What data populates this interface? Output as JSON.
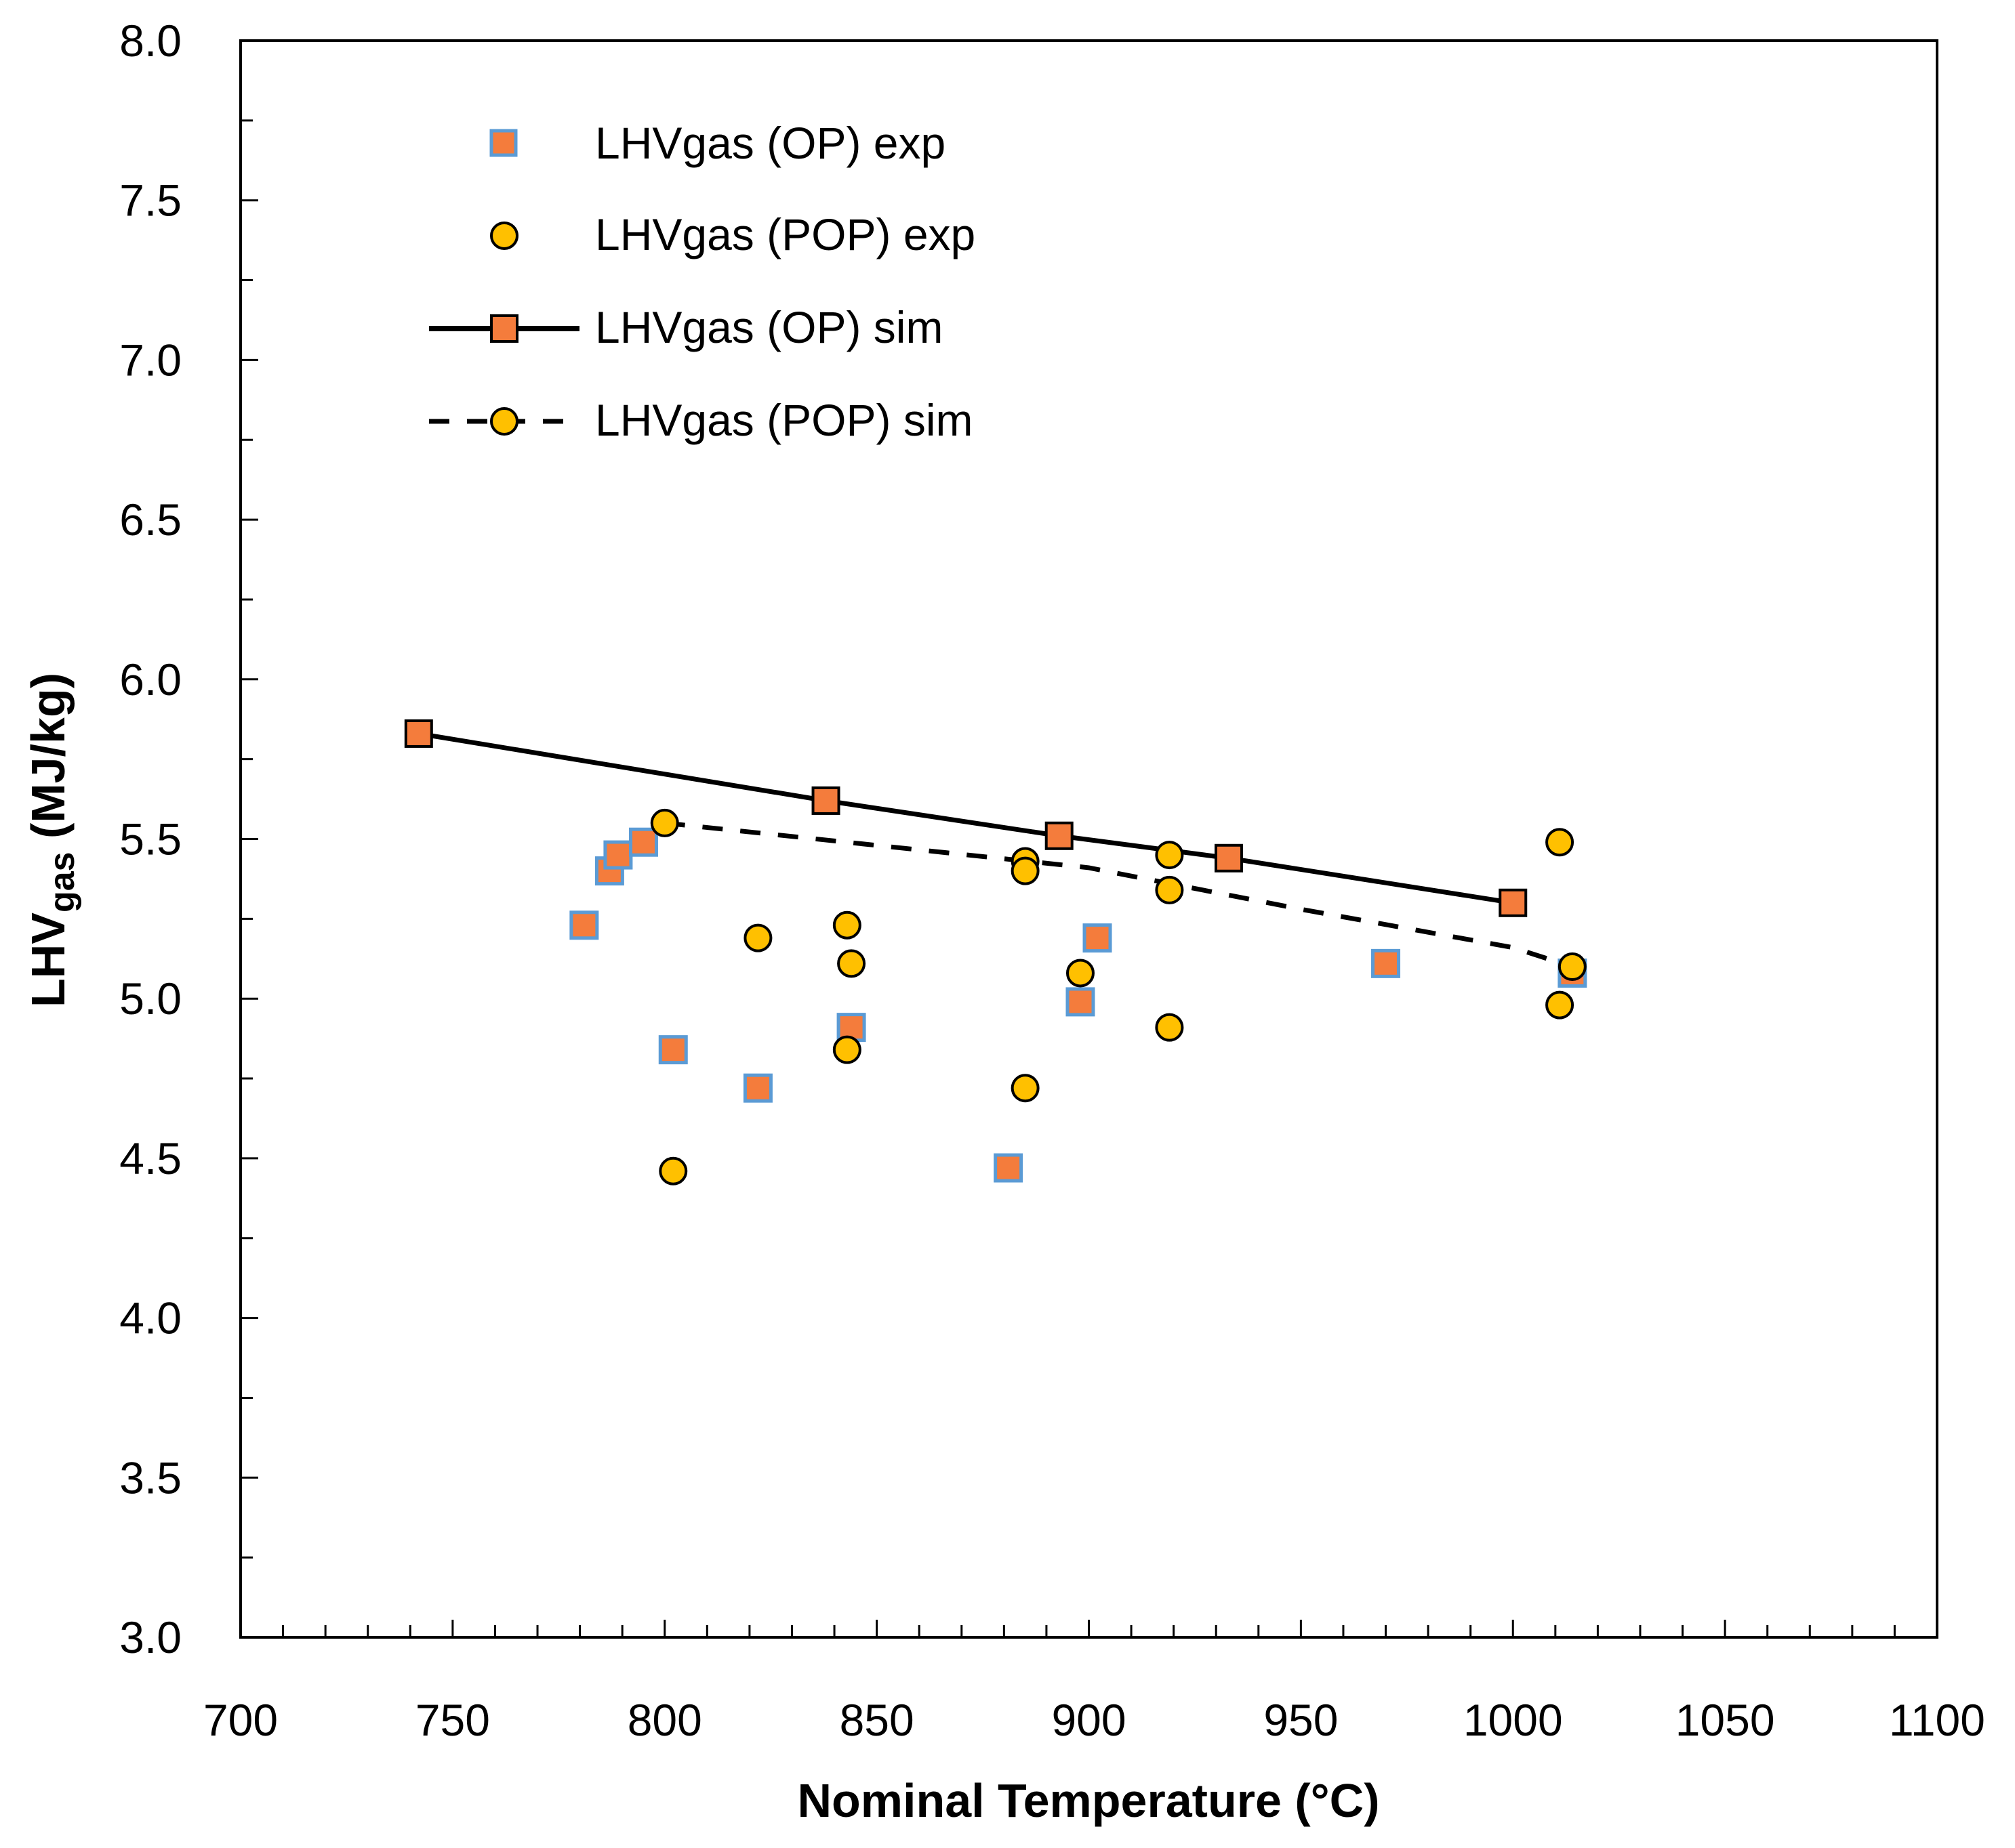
{
  "chart_data": {
    "type": "scatter",
    "title": "",
    "xlabel": "Nominal Temperature (°C)",
    "ylabel_main": "LHV",
    "ylabel_sub": "gas",
    "ylabel_tail": " (MJ/kg)",
    "xlim": [
      700,
      1100
    ],
    "ylim": [
      3.0,
      8.0
    ],
    "xticks": [
      700,
      750,
      800,
      850,
      900,
      950,
      1000,
      1050,
      1100
    ],
    "yticks": [
      3.0,
      3.5,
      4.0,
      4.5,
      5.0,
      5.5,
      6.0,
      6.5,
      7.0,
      7.5,
      8.0
    ],
    "xtick_labels": [
      "700",
      "750",
      "800",
      "850",
      "900",
      "950",
      "1000",
      "1050",
      "1100"
    ],
    "ytick_labels": [
      "3.0",
      "3.5",
      "4.0",
      "4.5",
      "5.0",
      "5.5",
      "6.0",
      "6.5",
      "7.0",
      "7.5",
      "8.0"
    ],
    "legend_position": "top-left",
    "series": [
      {
        "name": "LHVgas (OP) exp",
        "marker": "square",
        "line": "none",
        "fill": "#f47c3c",
        "stroke": "#5b9bd5",
        "x": [
          781,
          787,
          789,
          795,
          802,
          822,
          844,
          881,
          898,
          902,
          970,
          1014
        ],
        "y": [
          5.23,
          5.4,
          5.45,
          5.49,
          4.84,
          4.72,
          4.91,
          4.47,
          4.99,
          5.19,
          5.11,
          5.08
        ]
      },
      {
        "name": "LHVgas (POP) exp",
        "marker": "circle",
        "line": "none",
        "fill": "#ffc000",
        "stroke": "#000000",
        "x": [
          800,
          802,
          822,
          843,
          843,
          844,
          885,
          885,
          885,
          898,
          919,
          919,
          919,
          1011,
          1011,
          1014
        ],
        "y": [
          5.55,
          4.46,
          5.19,
          5.23,
          4.84,
          5.11,
          5.43,
          5.4,
          4.72,
          5.08,
          5.45,
          5.34,
          4.91,
          5.49,
          4.98,
          5.1
        ]
      },
      {
        "name": "LHVgas (OP) sim",
        "marker": "square",
        "line": "solid",
        "fill": "#f47c3c",
        "stroke": "#000000",
        "x": [
          742,
          838,
          893,
          933,
          1000
        ],
        "y": [
          5.83,
          5.62,
          5.51,
          5.44,
          5.3
        ]
      },
      {
        "name": "LHVgas (POP) sim",
        "marker": "none",
        "line": "dashed",
        "fill": "#ffc000",
        "stroke": "#000000",
        "x": [
          800,
          850,
          900,
          950,
          1000,
          1014
        ],
        "y": [
          5.55,
          5.48,
          5.41,
          5.28,
          5.16,
          5.1
        ]
      }
    ]
  }
}
